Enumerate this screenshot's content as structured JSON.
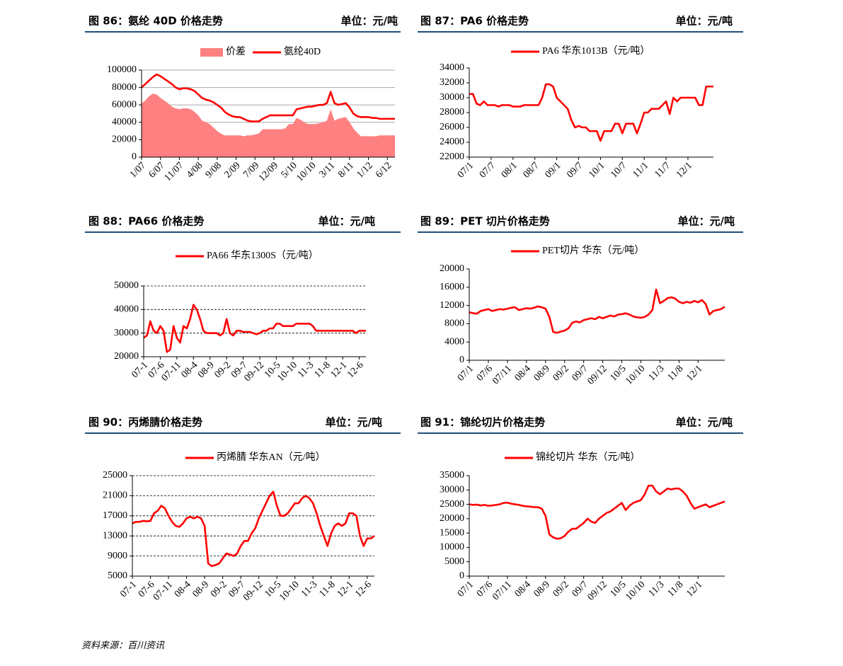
{
  "chart_data": [
    {
      "type": "line",
      "title": "图 86：氨纶 40D 价格走势",
      "unit": "单位：元/吨",
      "categories": [
        "1/07",
        null,
        null,
        null,
        null,
        "6/07",
        null,
        null,
        null,
        null,
        "11/07",
        null,
        null,
        null,
        null,
        "4/08",
        null,
        null,
        null,
        null,
        "9/08",
        null,
        null,
        null,
        null,
        "2/09",
        null,
        null,
        null,
        null,
        "7/09",
        null,
        null,
        null,
        null,
        "12/09",
        null,
        null,
        null,
        null,
        "5/10",
        null,
        null,
        null,
        null,
        "10/10",
        null,
        null,
        null,
        null,
        "3/11",
        null,
        null,
        null,
        null,
        "8/11",
        null,
        null,
        null,
        null,
        "1/12",
        null,
        null,
        null,
        null,
        "6/12",
        null,
        null
      ],
      "series": [
        {
          "name": "价差",
          "style": "area",
          "color": "#ff8080",
          "values": [
            62000,
            65000,
            70000,
            73000,
            72000,
            68000,
            65000,
            62000,
            58000,
            56000,
            55000,
            56000,
            56000,
            55000,
            52000,
            48000,
            42000,
            40000,
            38000,
            34000,
            30000,
            27000,
            25000,
            25000,
            25000,
            25000,
            25000,
            24000,
            25000,
            25000,
            26000,
            27000,
            32000,
            32000,
            32000,
            32000,
            32000,
            32000,
            33000,
            38000,
            38000,
            45000,
            43000,
            40000,
            38000,
            38000,
            38000,
            39000,
            40000,
            42000,
            55000,
            42000,
            44000,
            45000,
            46000,
            40000,
            33000,
            28000,
            24000,
            24000,
            24000,
            24000,
            24000,
            25000,
            25000,
            25000,
            25000,
            25000
          ]
        },
        {
          "name": "氨纶40D",
          "style": "line",
          "color": "#ff0000",
          "values": [
            80000,
            84000,
            88000,
            92000,
            95000,
            93000,
            90000,
            87000,
            84000,
            80000,
            78000,
            79000,
            79000,
            78000,
            76000,
            72000,
            68000,
            66000,
            65000,
            63000,
            60000,
            57000,
            52000,
            49000,
            47000,
            46000,
            46000,
            44000,
            42000,
            41000,
            41000,
            41000,
            44000,
            46000,
            48000,
            48000,
            48000,
            48000,
            48000,
            48000,
            48000,
            55000,
            56000,
            57000,
            58000,
            58000,
            59000,
            60000,
            60000,
            62000,
            75000,
            62000,
            60000,
            61000,
            62000,
            57000,
            50000,
            47000,
            46000,
            46000,
            46000,
            45000,
            45000,
            44000,
            44000,
            44000,
            44000,
            44000
          ]
        }
      ],
      "ylim": [
        0,
        100000
      ],
      "yticks": [
        0,
        20000,
        40000,
        60000,
        80000,
        100000
      ],
      "grid": "solid"
    },
    {
      "type": "line",
      "title": "图 87：PA6 价格走势",
      "unit": "单位：元/吨",
      "categories": [
        "07/1",
        null,
        null,
        null,
        null,
        null,
        "07/7",
        null,
        null,
        null,
        null,
        null,
        "08/1",
        null,
        null,
        null,
        null,
        null,
        "08/7",
        null,
        null,
        null,
        null,
        null,
        "09/1",
        null,
        null,
        null,
        null,
        null,
        "09/7",
        null,
        null,
        null,
        null,
        null,
        "10/1",
        null,
        null,
        null,
        null,
        null,
        "10/7",
        null,
        null,
        null,
        null,
        null,
        "11/1",
        null,
        null,
        null,
        null,
        null,
        "11/7",
        null,
        null,
        null,
        null,
        null,
        "12/1",
        null,
        null,
        null,
        null,
        null,
        null,
        null
      ],
      "series": [
        {
          "name": "PA6 华东1013B（元/吨）",
          "style": "line",
          "color": "#ff0000",
          "values": [
            30500,
            30500,
            29200,
            29000,
            29500,
            29000,
            29000,
            29000,
            28800,
            29000,
            29000,
            29000,
            28800,
            28800,
            28800,
            29000,
            29000,
            29000,
            29000,
            29000,
            30000,
            31800,
            31800,
            31500,
            30000,
            29500,
            29000,
            28500,
            27000,
            26000,
            26200,
            26000,
            26000,
            25500,
            25500,
            25500,
            24200,
            25500,
            25500,
            25500,
            26500,
            26500,
            25200,
            26500,
            26500,
            26500,
            25200,
            26500,
            28000,
            28000,
            28500,
            28500,
            28500,
            29000,
            29500,
            27800,
            30000,
            29500,
            30000,
            30000,
            30000,
            30000,
            30000,
            29000,
            29000,
            31500,
            31500,
            31500
          ]
        }
      ],
      "ylim": [
        22000,
        34000
      ],
      "yticks": [
        22000,
        24000,
        26000,
        28000,
        30000,
        32000,
        34000
      ],
      "grid": false
    },
    {
      "type": "line",
      "title": "图 88：PA66 价格走势",
      "unit": "单位：元/吨",
      "categories": [
        "07-1",
        null,
        null,
        null,
        null,
        "07-6",
        null,
        null,
        null,
        null,
        "07-11",
        null,
        null,
        null,
        null,
        "08-4",
        null,
        null,
        null,
        null,
        "08-9",
        null,
        null,
        null,
        null,
        "09-2",
        null,
        null,
        null,
        null,
        "09-7",
        null,
        null,
        null,
        null,
        "09-12",
        null,
        null,
        null,
        null,
        "10-5",
        null,
        null,
        null,
        null,
        "10-10",
        null,
        null,
        null,
        null,
        "11-3",
        null,
        null,
        null,
        null,
        "11-8",
        null,
        null,
        null,
        null,
        "12-1",
        null,
        null,
        null,
        null,
        "12-6",
        null,
        null
      ],
      "series": [
        {
          "name": "PA66 华东1300S（元/吨）",
          "style": "line",
          "color": "#ff0000",
          "values": [
            28000,
            29000,
            35000,
            31000,
            30000,
            33000,
            31000,
            22000,
            23000,
            33000,
            28000,
            26000,
            33000,
            32000,
            36000,
            42000,
            40000,
            36000,
            31000,
            30000,
            30000,
            30000,
            30000,
            29000,
            30000,
            36000,
            30000,
            29000,
            31000,
            31000,
            30500,
            30500,
            30500,
            30000,
            29500,
            30000,
            31000,
            31000,
            32000,
            32000,
            34000,
            34000,
            33000,
            33000,
            33000,
            33000,
            34000,
            34000,
            34000,
            34000,
            34000,
            33000,
            31000,
            31000,
            31000,
            31000,
            31000,
            31000,
            31000,
            31000,
            31000,
            31000,
            31000,
            31000,
            30000,
            31000,
            31000,
            31000
          ]
        }
      ],
      "ylim": [
        20000,
        50000
      ],
      "yticks": [
        20000,
        30000,
        40000,
        50000
      ],
      "grid": "dashed"
    },
    {
      "type": "line",
      "title": "图 89：PET 切片价格走势",
      "unit": "单位：元/吨",
      "categories": [
        "07/1",
        null,
        null,
        null,
        null,
        "07/6",
        null,
        null,
        null,
        null,
        "07/11",
        null,
        null,
        null,
        null,
        "08/4",
        null,
        null,
        null,
        null,
        "08/9",
        null,
        null,
        null,
        null,
        "09/2",
        null,
        null,
        null,
        null,
        "09/7",
        null,
        null,
        null,
        null,
        "09/12",
        null,
        null,
        null,
        null,
        "10/5",
        null,
        null,
        null,
        null,
        "10/10",
        null,
        null,
        null,
        null,
        "11/3",
        null,
        null,
        null,
        null,
        "11/8",
        null,
        null,
        null,
        null,
        "12/1",
        null,
        null,
        null,
        null,
        null,
        null,
        null
      ],
      "series": [
        {
          "name": "PET切片 华东（元/吨）",
          "style": "line",
          "color": "#ff0000",
          "values": [
            10500,
            10300,
            10200,
            10800,
            11000,
            11200,
            10800,
            11000,
            11200,
            11100,
            11300,
            11500,
            11600,
            11000,
            11200,
            11400,
            11300,
            11500,
            11800,
            11600,
            11300,
            9500,
            6200,
            6000,
            6300,
            6500,
            7000,
            8200,
            8500,
            8300,
            8800,
            9000,
            9200,
            9000,
            9500,
            9200,
            9500,
            9800,
            9600,
            10000,
            10100,
            10300,
            10000,
            9600,
            9400,
            9300,
            9500,
            10000,
            11000,
            15500,
            12500,
            13000,
            13600,
            13800,
            13500,
            12800,
            12500,
            12800,
            12600,
            13000,
            12700,
            13200,
            12300,
            10000,
            10800,
            11000,
            11200,
            11700
          ]
        }
      ],
      "ylim": [
        0,
        20000
      ],
      "yticks": [
        0,
        4000,
        8000,
        12000,
        16000,
        20000
      ],
      "grid": false
    },
    {
      "type": "line",
      "title": "图 90：丙烯腈价格走势",
      "unit": "单位：元/吨",
      "categories": [
        "07-1",
        null,
        null,
        null,
        null,
        "07-6",
        null,
        null,
        null,
        null,
        "07-11",
        null,
        null,
        null,
        null,
        "08-4",
        null,
        null,
        null,
        null,
        "08-9",
        null,
        null,
        null,
        null,
        "09-2",
        null,
        null,
        null,
        null,
        "09-7",
        null,
        null,
        null,
        null,
        "09-12",
        null,
        null,
        null,
        null,
        "10-5",
        null,
        null,
        null,
        null,
        "10-10",
        null,
        null,
        null,
        null,
        "11-3",
        null,
        null,
        null,
        null,
        "11-8",
        null,
        null,
        null,
        null,
        "12-1",
        null,
        null,
        null,
        null,
        "12-6",
        null,
        null
      ],
      "series": [
        {
          "name": "丙烯腈 华东AN（元/吨）",
          "style": "line",
          "color": "#ff0000",
          "values": [
            15500,
            15800,
            15800,
            16000,
            15900,
            16000,
            17500,
            18000,
            19000,
            18500,
            17000,
            15800,
            15000,
            14800,
            15500,
            16500,
            16800,
            16500,
            16800,
            16500,
            15000,
            7500,
            7000,
            7200,
            7500,
            8500,
            9500,
            9300,
            9000,
            9500,
            11000,
            12000,
            12000,
            13500,
            14500,
            16500,
            18000,
            19500,
            21000,
            21800,
            19000,
            17000,
            17000,
            17500,
            18500,
            19500,
            19500,
            20500,
            21000,
            20500,
            19500,
            17500,
            15000,
            13000,
            11000,
            13500,
            15000,
            15500,
            15000,
            15500,
            17500,
            17500,
            17000,
            13000,
            11000,
            12500,
            12500,
            13000
          ]
        }
      ],
      "ylim": [
        5000,
        25000
      ],
      "yticks": [
        5000,
        9000,
        13000,
        17000,
        21000,
        25000
      ],
      "grid": "dashed"
    },
    {
      "type": "line",
      "title": "图 91：锦纶切片价格走势",
      "unit": "单位：元/吨",
      "categories": [
        "07/1",
        null,
        null,
        null,
        null,
        "07/6",
        null,
        null,
        null,
        null,
        "07/11",
        null,
        null,
        null,
        null,
        "08/4",
        null,
        null,
        null,
        null,
        "08/9",
        null,
        null,
        null,
        null,
        "09/2",
        null,
        null,
        null,
        null,
        "09/7",
        null,
        null,
        null,
        null,
        "09/12",
        null,
        null,
        null,
        null,
        "10/5",
        null,
        null,
        null,
        null,
        "10/10",
        null,
        null,
        null,
        null,
        "11/3",
        null,
        null,
        null,
        null,
        "11/8",
        null,
        null,
        null,
        null,
        "12/1",
        null,
        null,
        null,
        null,
        null,
        null,
        null
      ],
      "series": [
        {
          "name": "锦纶切片 华东（元/吨）",
          "style": "line",
          "color": "#ff0000",
          "values": [
            25000,
            24800,
            24900,
            24600,
            24800,
            24500,
            24600,
            24800,
            25000,
            25500,
            25600,
            25200,
            25000,
            24800,
            24500,
            24300,
            24200,
            24000,
            24000,
            23500,
            21000,
            14500,
            13500,
            13000,
            13200,
            14000,
            15500,
            16500,
            16500,
            17500,
            18500,
            20000,
            19000,
            18500,
            20000,
            21000,
            22000,
            22500,
            23500,
            24500,
            25500,
            23000,
            24500,
            25500,
            26000,
            26500,
            28500,
            31500,
            31500,
            29500,
            28500,
            29500,
            30500,
            30200,
            30500,
            30500,
            29500,
            28000,
            25500,
            23500,
            24000,
            24500,
            25000,
            24000,
            24500,
            25000,
            25500,
            26000
          ]
        }
      ],
      "ylim": [
        0,
        35000
      ],
      "yticks": [
        0,
        5000,
        10000,
        15000,
        20000,
        25000,
        30000,
        35000
      ],
      "grid": false
    }
  ],
  "source": "资料来源：百川资讯"
}
